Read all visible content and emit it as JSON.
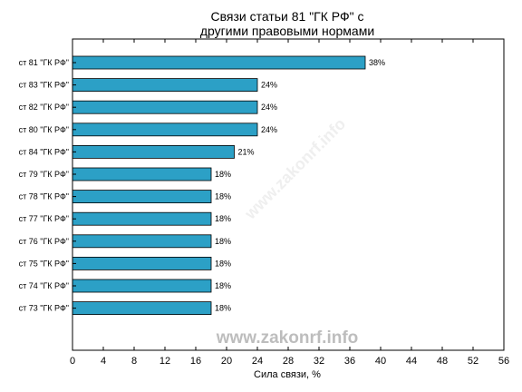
{
  "chart_data": {
    "type": "bar",
    "orientation": "horizontal",
    "title_lines": [
      "Связи статьи 81 \"ГК РФ\" с",
      "другими правовыми нормами"
    ],
    "xlabel": "Сила связи, %",
    "ylabel": "",
    "xlim": [
      0,
      56
    ],
    "xticks": [
      0,
      4,
      8,
      12,
      16,
      20,
      24,
      28,
      32,
      36,
      40,
      44,
      48,
      52,
      56
    ],
    "grid": false,
    "legend": "none",
    "categories": [
      "ст 81 \"ГК РФ\"",
      "ст 83 \"ГК РФ\"",
      "ст 82 \"ГК РФ\"",
      "ст 80 \"ГК РФ\"",
      "ст 84 \"ГК РФ\"",
      "ст 79 \"ГК РФ\"",
      "ст 78 \"ГК РФ\"",
      "ст 77 \"ГК РФ\"",
      "ст 76 \"ГК РФ\"",
      "ст 75 \"ГК РФ\"",
      "ст 74 \"ГК РФ\"",
      "ст 73 \"ГК РФ\""
    ],
    "values": [
      38,
      24,
      24,
      24,
      21,
      18,
      18,
      18,
      18,
      18,
      18,
      18
    ],
    "value_labels": [
      "38%",
      "24%",
      "24%",
      "24%",
      "21%",
      "18%",
      "18%",
      "18%",
      "18%",
      "18%",
      "18%",
      "18%"
    ],
    "bar_color": "#2ca0c6",
    "watermark": "www.zakonrf.info"
  }
}
